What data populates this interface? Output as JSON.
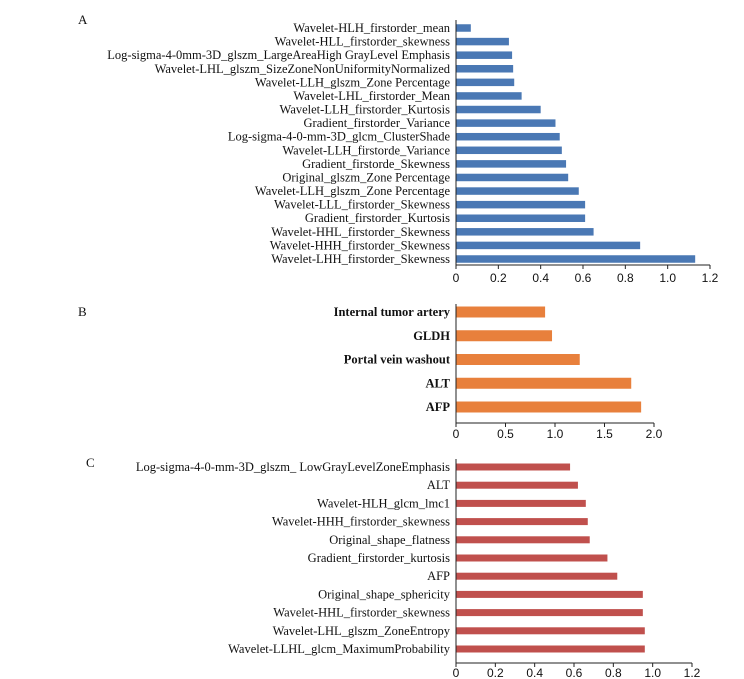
{
  "chart_data": [
    {
      "type": "bar",
      "orientation": "horizontal",
      "panel_label": "A",
      "color": "#4a78b4",
      "categories": [
        "Wavelet-HLH_firstorder_mean",
        "Wavelet-HLL_firstorder_skewness",
        "Log-sigma-4-0mm-3D_glszm_LargeAreaHigh GrayLevel Emphasis",
        "Wavelet-LHL_glszm_SizeZoneNonUniformityNormalized",
        "Wavelet-LLH_glszm_Zone Percentage",
        "Wavelet-LHL_firstorder_Mean",
        "Wavelet-LLH_firstorder_Kurtosis",
        "Gradient_firstorder_Variance",
        "Log-sigma-4-0-mm-3D_glcm_ClusterShade",
        "Wavelet-LLH_firstorde_Variance",
        "Gradient_firstorde_Skewness",
        "Original_glszm_Zone Percentage",
        "Wavelet-LLH_glszm_Zone Percentage",
        "Wavelet-LLL_firstorder_Skewness",
        "Gradient_firstorder_Kurtosis",
        "Wavelet-HHL_firstorder_Skewness",
        "Wavelet-HHH_firstorder_Skewness",
        "Wavelet-LHH_firstorder_Skewness"
      ],
      "values": [
        0.07,
        0.25,
        0.265,
        0.27,
        0.275,
        0.31,
        0.4,
        0.47,
        0.49,
        0.5,
        0.52,
        0.53,
        0.58,
        0.61,
        0.61,
        0.65,
        0.87,
        1.13
      ],
      "xlim": [
        0,
        1.2
      ],
      "xticks": [
        "0",
        "0.2",
        "0.4",
        "0.6",
        "0.8",
        "1.0",
        "1.2"
      ]
    },
    {
      "type": "bar",
      "orientation": "horizontal",
      "panel_label": "B",
      "color": "#e8803c",
      "categories": [
        "Internal tumor artery",
        "GLDH",
        "Portal vein washout",
        "ALT",
        "AFP"
      ],
      "values": [
        0.9,
        0.97,
        1.25,
        1.77,
        1.87
      ],
      "xlim": [
        0,
        2.0
      ],
      "xticks": [
        "0",
        "0.5",
        "1.0",
        "1.5",
        "2.0"
      ]
    },
    {
      "type": "bar",
      "orientation": "horizontal",
      "panel_label": "C",
      "color": "#c0504d",
      "categories": [
        "Log-sigma-4-0-mm-3D_glszm_ LowGrayLevelZoneEmphasis",
        "ALT",
        "Wavelet-HLH_glcm_lmc1",
        "Wavelet-HHH_firstorder_skewness",
        "Original_shape_flatness",
        "Gradient_firstorder_kurtosis",
        "AFP",
        "Original_shape_sphericity",
        "Wavelet-HHL_firstorder_skewness",
        "Wavelet-LHL_glszm_ZoneEntropy",
        "Wavelet-LLHL_glcm_MaximumProbability"
      ],
      "values": [
        0.58,
        0.62,
        0.66,
        0.67,
        0.68,
        0.77,
        0.82,
        0.95,
        0.95,
        0.96,
        0.96
      ],
      "xlim": [
        0,
        1.2
      ],
      "xticks": [
        "0",
        "0.2",
        "0.4",
        "0.6",
        "0.8",
        "1.0",
        "1.2"
      ]
    }
  ]
}
